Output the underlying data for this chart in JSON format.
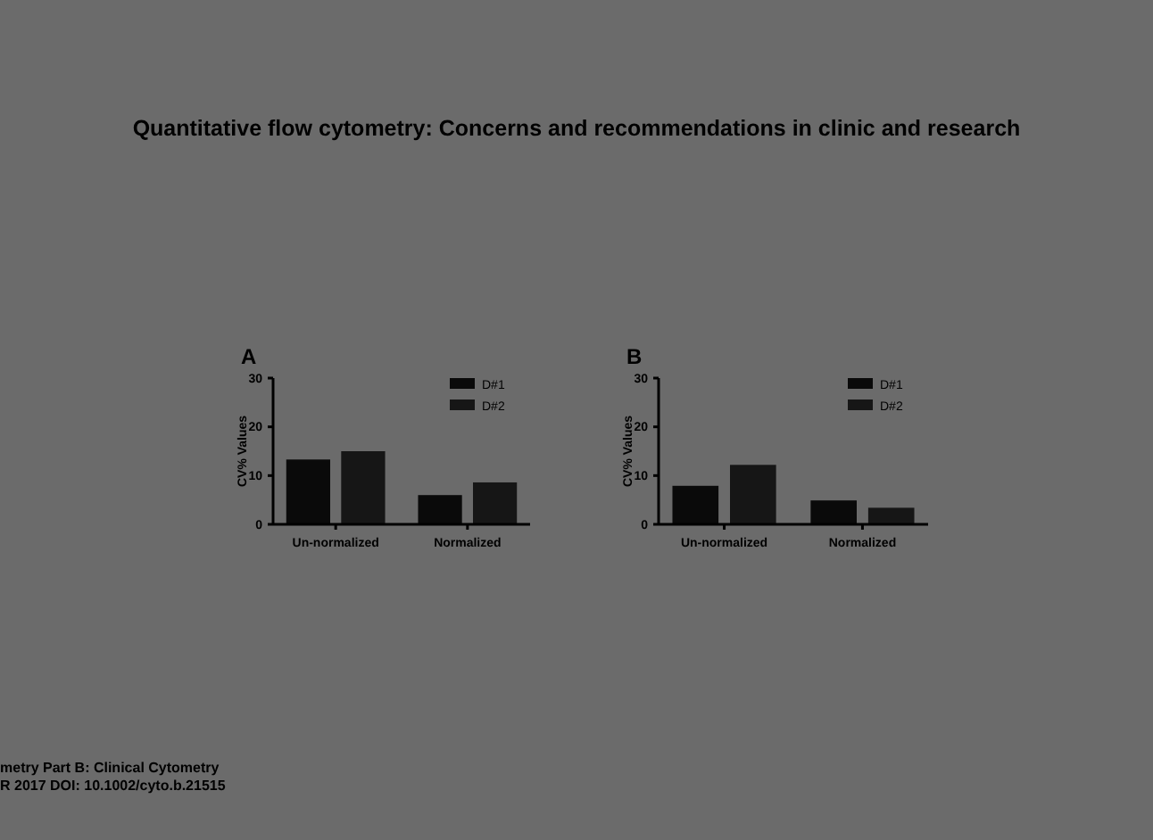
{
  "chart_data": [
    {
      "type": "bar",
      "title": "A",
      "ylabel": "CV% Values",
      "categories": [
        "Un-normalized",
        "Normalized"
      ],
      "series": [
        {
          "name": "D#1",
          "color": "#0a0a0a",
          "values": [
            13.3,
            6.0
          ]
        },
        {
          "name": "D#2",
          "color": "#161616",
          "values": [
            15.0,
            8.6
          ]
        }
      ],
      "ylim": [
        0,
        30
      ],
      "yticks": [
        0,
        10,
        20,
        30
      ],
      "legend": "top right",
      "annotations": [
        "Quantitative flow cytometry: Concerns and recommendations in clinic and research",
        "metry Part B: Clinical Cytometry",
        "R 2017 DOI: 10.1002/cyto.b.21515"
      ]
    },
    {
      "type": "bar",
      "title": "B",
      "ylabel": "CV% Values",
      "categories": [
        "Un-normalized",
        "Normalized"
      ],
      "series": [
        {
          "name": "D#1",
          "color": "#0a0a0a",
          "values": [
            7.9,
            4.9
          ]
        },
        {
          "name": "D#2",
          "color": "#161616",
          "values": [
            12.2,
            3.4
          ]
        }
      ],
      "ylim": [
        0,
        30
      ],
      "yticks": [
        0,
        10,
        20,
        30
      ],
      "legend": "top right"
    }
  ]
}
